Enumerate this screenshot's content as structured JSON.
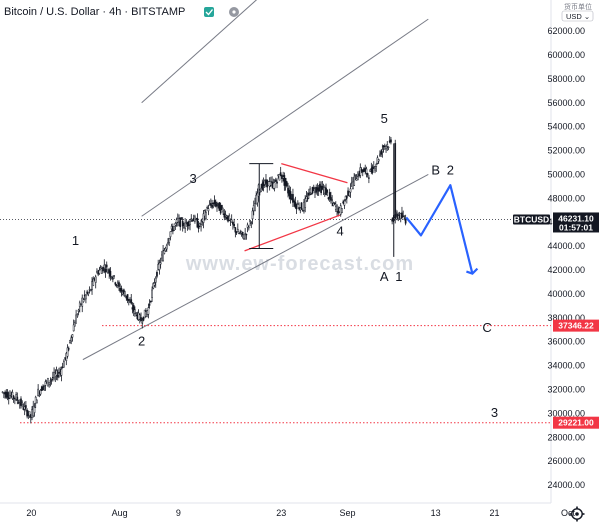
{
  "header": {
    "title": "Bitcoin / U.S. Dollar · 4h · BITSTAMP",
    "currency_label": "货币单位",
    "currency": "USD ⌄"
  },
  "watermark": "www.ew-forecast.com",
  "colors": {
    "up": "#131722",
    "channel": "#787b86",
    "triangle": "#f23645",
    "projection": "#2962ff",
    "price_badge": "#131722",
    "level_badge": "#f23645",
    "grid_dot": "#f23645",
    "price_dot": "#131722"
  },
  "chart_data": {
    "type": "candlestick",
    "symbol": "BTCUSD",
    "interval": "4h",
    "exchange": "BITSTAMP",
    "ylim": [
      22500,
      64600
    ],
    "y_ticks": [
      24000,
      26000,
      28000,
      30000,
      32000,
      34000,
      36000,
      38000,
      40000,
      42000,
      44000,
      46000,
      48000,
      50000,
      52000,
      54000,
      56000,
      58000,
      60000,
      62000
    ],
    "x_ticks": [
      {
        "label": "20",
        "date": "2021-07-20"
      },
      {
        "label": "Aug",
        "date": "2021-08-01"
      },
      {
        "label": "9",
        "date": "2021-08-09"
      },
      {
        "label": "23",
        "date": "2021-08-23"
      },
      {
        "label": "Sep",
        "date": "2021-09-01"
      },
      {
        "label": "13",
        "date": "2021-09-13"
      },
      {
        "label": "21",
        "date": "2021-09-21"
      },
      {
        "label": "Oct",
        "date": "2021-10-01"
      }
    ],
    "current_price": {
      "label": "BTCUSD",
      "value": "46231.10",
      "timer": "01:57:01",
      "y": 46231.1
    },
    "levels": [
      {
        "value": "37346.22",
        "y": 37346.22
      },
      {
        "value": "29221.00",
        "y": 29221.0
      }
    ],
    "price_path": [
      [
        "2021-07-16",
        31800
      ],
      [
        "2021-07-18",
        31300
      ],
      [
        "2021-07-20",
        29700
      ],
      [
        "2021-07-21",
        31800
      ],
      [
        "2021-07-22",
        32500
      ],
      [
        "2021-07-24",
        33500
      ],
      [
        "2021-07-25",
        35200
      ],
      [
        "2021-07-26",
        37800
      ],
      [
        "2021-07-27",
        39500
      ],
      [
        "2021-07-28",
        40200
      ],
      [
        "2021-07-29",
        41800
      ],
      [
        "2021-07-30",
        42300
      ],
      [
        "2021-07-31",
        41600
      ],
      [
        "2021-08-01",
        40500
      ],
      [
        "2021-08-02",
        39800
      ],
      [
        "2021-08-03",
        38600
      ],
      [
        "2021-08-04",
        37800
      ],
      [
        "2021-08-05",
        38800
      ],
      [
        "2021-08-06",
        41500
      ],
      [
        "2021-08-07",
        43400
      ],
      [
        "2021-08-08",
        45200
      ],
      [
        "2021-08-09",
        46100
      ],
      [
        "2021-08-10",
        45700
      ],
      [
        "2021-08-11",
        46400
      ],
      [
        "2021-08-12",
        45600
      ],
      [
        "2021-08-13",
        47200
      ],
      [
        "2021-08-14",
        47600
      ],
      [
        "2021-08-15",
        47000
      ],
      [
        "2021-08-16",
        46200
      ],
      [
        "2021-08-17",
        45200
      ],
      [
        "2021-08-18",
        44800
      ],
      [
        "2021-08-19",
        46300
      ],
      [
        "2021-08-20",
        48800
      ],
      [
        "2021-08-21",
        49300
      ],
      [
        "2021-08-22",
        49100
      ],
      [
        "2021-08-23",
        50100
      ],
      [
        "2021-08-24",
        48600
      ],
      [
        "2021-08-25",
        47500
      ],
      [
        "2021-08-26",
        47200
      ],
      [
        "2021-08-27",
        48600
      ],
      [
        "2021-08-28",
        48900
      ],
      [
        "2021-08-29",
        48700
      ],
      [
        "2021-08-30",
        47600
      ],
      [
        "2021-08-31",
        46900
      ],
      [
        "2021-09-01",
        48300
      ],
      [
        "2021-09-02",
        49600
      ],
      [
        "2021-09-03",
        50400
      ],
      [
        "2021-09-04",
        50000
      ],
      [
        "2021-09-05",
        51000
      ],
      [
        "2021-09-06",
        52400
      ],
      [
        "2021-09-07",
        52600
      ],
      [
        "2021-09-07",
        46300
      ],
      [
        "2021-09-08",
        46600
      ],
      [
        "2021-09-09",
        46200
      ]
    ],
    "upper_channel": [
      [
        "2021-08-04",
        56000
      ],
      [
        "2021-09-12",
        77500
      ]
    ],
    "channel_mid": [
      [
        "2021-08-04",
        46500
      ],
      [
        "2021-09-12",
        63000
      ]
    ],
    "lower_channel": [
      [
        "2021-07-27",
        34500
      ],
      [
        "2021-09-12",
        50000
      ]
    ],
    "triangle": [
      [
        [
          "2021-08-23",
          50900
        ],
        [
          "2021-09-01",
          49300
        ]
      ],
      [
        [
          "2021-08-18",
          43600
        ],
        [
          "2021-08-31",
          46600
        ]
      ]
    ],
    "wave_labels": [
      {
        "text": "1",
        "x": "2021-07-26",
        "y": 44100
      },
      {
        "text": "2",
        "x": "2021-08-04",
        "y": 35700
      },
      {
        "text": "3",
        "x": "2021-08-11",
        "y": 49300
      },
      {
        "text": "4",
        "x": "2021-08-31",
        "y": 44900
      },
      {
        "text": "5",
        "x": "2021-09-06",
        "y": 54300
      },
      {
        "text": "A",
        "x": "2021-09-06",
        "y": 41100
      },
      {
        "text": "1",
        "x": "2021-09-08",
        "y": 41100
      },
      {
        "text": "B",
        "x": "2021-09-13",
        "y": 50000
      },
      {
        "text": "2",
        "x": "2021-09-15",
        "y": 50000
      },
      {
        "text": "C",
        "x": "2021-09-20",
        "y": 36800
      },
      {
        "text": "3",
        "x": "2021-09-21",
        "y": 29700
      }
    ],
    "projection": [
      [
        "2021-09-09",
        46400
      ],
      [
        "2021-09-11",
        44900
      ],
      [
        "2021-09-15",
        49100
      ],
      [
        "2021-09-18",
        41700
      ]
    ]
  }
}
